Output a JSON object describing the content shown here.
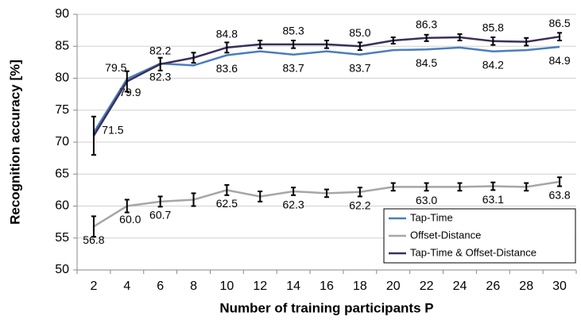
{
  "chart_data": {
    "type": "line",
    "x_label": "Number of training participants P",
    "y_label": "Recognition accuracy [%]",
    "categories": [
      "2",
      "4",
      "6",
      "8",
      "10",
      "12",
      "14",
      "16",
      "18",
      "20",
      "22",
      "24",
      "26",
      "28",
      "30"
    ],
    "ylim": [
      50,
      90
    ],
    "yticks": [
      50,
      55,
      60,
      65,
      70,
      75,
      80,
      85,
      90
    ],
    "grid": true,
    "legend": "lower right",
    "series": [
      {
        "name": "Tap-Time",
        "color": "#4a7ebb",
        "label_side": "below",
        "values": [
          71.5,
          79.9,
          82.3,
          82.0,
          83.6,
          84.2,
          83.7,
          84.2,
          83.7,
          84.4,
          84.5,
          84.8,
          84.2,
          84.4,
          84.9
        ],
        "value_labels": [
          "71.5",
          "79.9",
          "82.3",
          null,
          "83.6",
          null,
          "83.7",
          null,
          "83.7",
          null,
          "84.5",
          null,
          "84.2",
          null,
          "84.9"
        ]
      },
      {
        "name": "Offset-Distance",
        "color": "#a6a6a6",
        "label_side": "below",
        "values": [
          56.8,
          60.0,
          60.7,
          61.0,
          62.5,
          61.5,
          62.3,
          62.0,
          62.2,
          63.0,
          63.0,
          63.0,
          63.1,
          63.0,
          63.8
        ],
        "value_labels": [
          "56.8",
          "60.0",
          "60.7",
          null,
          "62.5",
          null,
          "62.3",
          null,
          "62.2",
          null,
          "63.0",
          null,
          "63.1",
          null,
          "63.8"
        ],
        "errors": [
          1.6,
          1.0,
          0.8,
          1.0,
          0.8,
          0.8,
          0.6,
          0.6,
          0.7,
          0.6,
          0.6,
          0.6,
          0.6,
          0.6,
          0.7
        ]
      },
      {
        "name": "Tap-Time & Offset-Distance",
        "color": "#3b2f5a",
        "label_side": "above",
        "values": [
          71.0,
          79.5,
          82.2,
          83.2,
          84.8,
          85.3,
          85.3,
          85.3,
          85.0,
          85.9,
          86.3,
          86.4,
          85.8,
          85.7,
          86.5
        ],
        "value_labels": [
          null,
          "79.5",
          "82.2",
          null,
          "84.8",
          null,
          "85.3",
          null,
          "85.0",
          null,
          "86.3",
          null,
          "85.8",
          null,
          "86.5"
        ],
        "errors": [
          3.0,
          1.6,
          1.0,
          0.8,
          0.8,
          0.6,
          0.6,
          0.6,
          0.6,
          0.5,
          0.5,
          0.5,
          0.6,
          0.6,
          0.6
        ]
      }
    ]
  }
}
